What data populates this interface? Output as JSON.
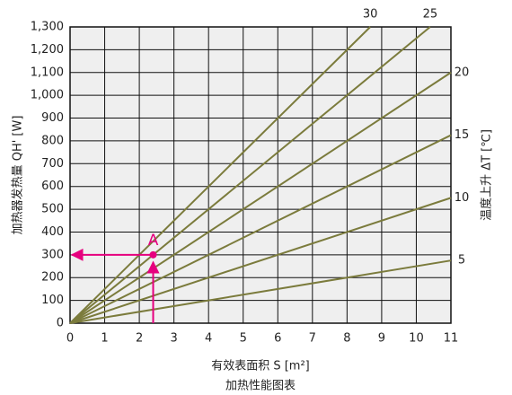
{
  "chart_data": {
    "type": "line",
    "xlabel": "有效表面积 S [m²]",
    "ylabel": "加热器发热量 QH' [W]",
    "y2label": "温度上升 ΔT [℃]",
    "caption": "加热性能图表",
    "xlim": [
      0,
      11
    ],
    "xticks": [
      0,
      1,
      2,
      3,
      4,
      5,
      6,
      7,
      8,
      9,
      10,
      11
    ],
    "ylim": [
      0,
      1300
    ],
    "yticks": [
      0,
      100,
      200,
      300,
      400,
      500,
      600,
      700,
      800,
      900,
      {
        "value": 1000,
        "label": "1,000"
      },
      {
        "value": 1100,
        "label": "1,100"
      },
      {
        "value": 1200,
        "label": "1,200"
      },
      {
        "value": 1300,
        "label": "1,300"
      }
    ],
    "grid": true,
    "background": "#efefef",
    "series": [
      {
        "name": "30",
        "color": "#7b7b3c",
        "x": [
          0,
          8.67
        ],
        "values": [
          0,
          1300
        ]
      },
      {
        "name": "25",
        "color": "#7b7b3c",
        "x": [
          0,
          10.4
        ],
        "values": [
          0,
          1300
        ]
      },
      {
        "name": "20",
        "color": "#7b7b3c",
        "x": [
          0,
          11
        ],
        "values": [
          0,
          1100
        ]
      },
      {
        "name": "15",
        "color": "#7b7b3c",
        "x": [
          0,
          11
        ],
        "values": [
          0,
          825
        ]
      },
      {
        "name": "10",
        "color": "#7b7b3c",
        "x": [
          0,
          11
        ],
        "values": [
          0,
          550
        ]
      },
      {
        "name": "5",
        "color": "#7b7b3c",
        "x": [
          0,
          11
        ],
        "values": [
          0,
          275
        ]
      }
    ],
    "annotation": {
      "label": "A",
      "x": 2.4,
      "y": 300,
      "color": "#e6007e"
    }
  }
}
